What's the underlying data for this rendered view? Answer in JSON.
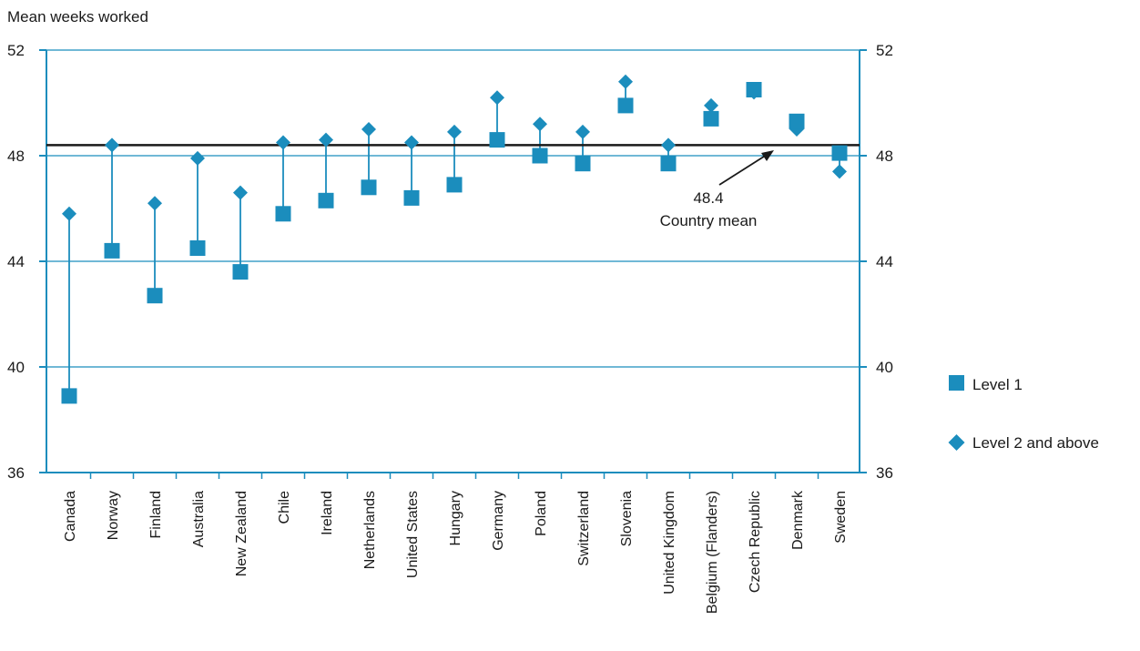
{
  "chart_data": {
    "type": "scatter",
    "ylabel": "Mean weeks worked",
    "ylim": [
      36,
      52
    ],
    "yticks": [
      36,
      40,
      44,
      48,
      52
    ],
    "grid": true,
    "legend_position": "right",
    "categories": [
      "Canada",
      "Norway",
      "Finland",
      "Australia",
      "New Zealand",
      "Chile",
      "Ireland",
      "Netherlands",
      "United States",
      "Hungary",
      "Germany",
      "Poland",
      "Switzerland",
      "Slovenia",
      "United Kingdom",
      "Belgium (Flanders)",
      "Czech Republic",
      "Denmark",
      "Sweden"
    ],
    "series": [
      {
        "name": "Level 1",
        "marker": "square",
        "color": "#1b8dbd",
        "values": [
          38.9,
          44.4,
          42.7,
          44.5,
          43.6,
          45.8,
          46.3,
          46.8,
          46.4,
          46.9,
          48.6,
          48.0,
          47.7,
          49.9,
          47.7,
          49.4,
          50.5,
          49.3,
          48.1
        ]
      },
      {
        "name": "Level 2 and above",
        "marker": "diamond",
        "color": "#1b8dbd",
        "values": [
          45.8,
          48.4,
          46.2,
          47.9,
          46.6,
          48.5,
          48.6,
          49.0,
          48.5,
          48.9,
          50.2,
          49.2,
          48.9,
          50.8,
          48.4,
          49.9,
          50.4,
          49.0,
          47.4
        ]
      }
    ],
    "reference_line": {
      "value": 48.4,
      "label_value": "48.4",
      "label_text": "Country mean"
    }
  }
}
